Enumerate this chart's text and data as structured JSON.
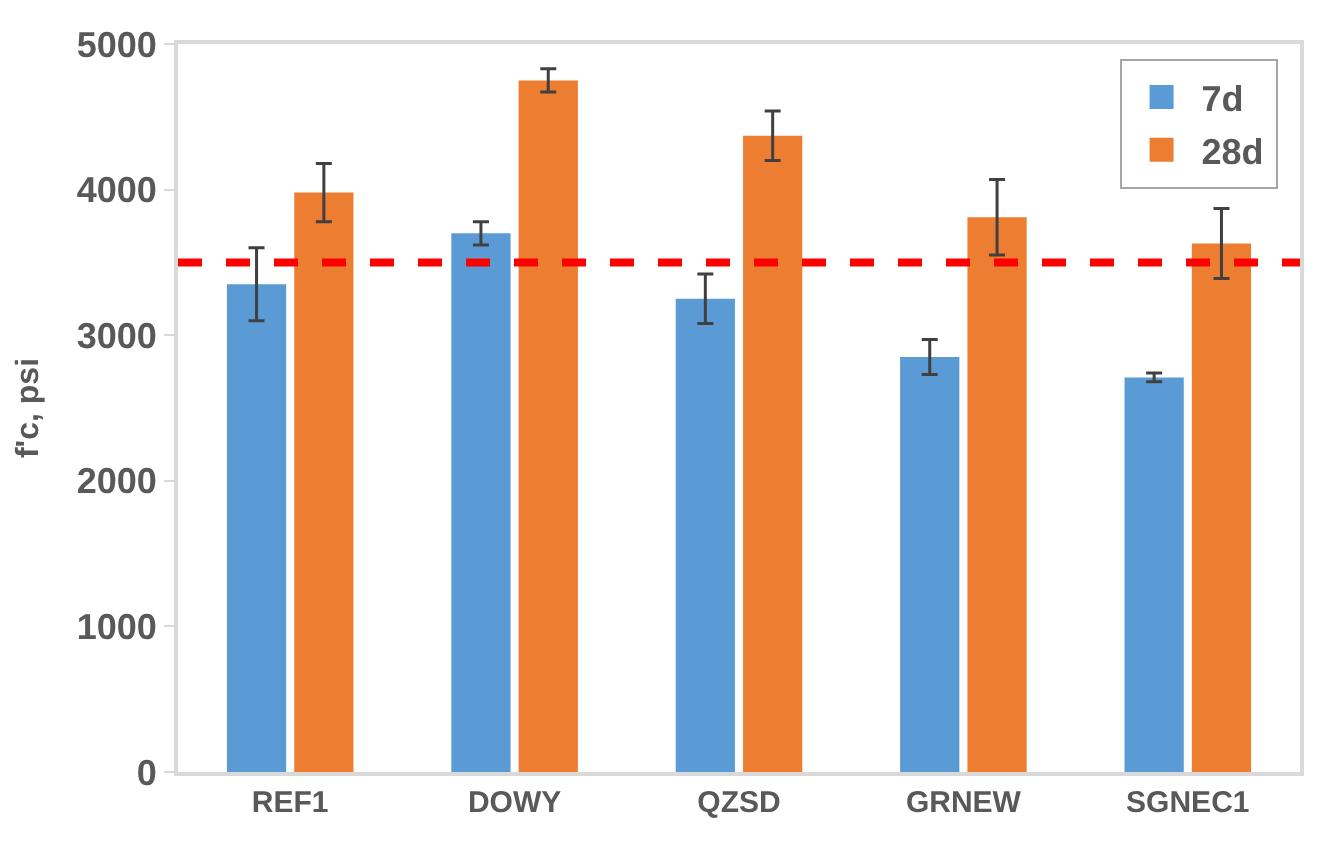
{
  "chart_data": {
    "type": "bar",
    "ylabel": "f'c, psi",
    "categories": [
      "REF1",
      "DOWY",
      "QZSD",
      "GRNEW",
      "SGNEC1"
    ],
    "series": [
      {
        "name": "7d",
        "color": "#5b9bd5",
        "values": [
          3350,
          3700,
          3250,
          2850,
          2710
        ],
        "errors": [
          250,
          80,
          170,
          120,
          30
        ]
      },
      {
        "name": "28d",
        "color": "#ed7d31",
        "values": [
          3980,
          4750,
          4370,
          3810,
          3630
        ],
        "errors": [
          200,
          80,
          170,
          260,
          240
        ]
      }
    ],
    "ylim": [
      0,
      5000
    ],
    "yticks": [
      0,
      1000,
      2000,
      3000,
      4000,
      5000
    ],
    "ref_lines": [
      {
        "axis": "y",
        "value": 3500,
        "color": "#ff0000",
        "line_style": "dashed"
      }
    ],
    "legend": "top right"
  }
}
